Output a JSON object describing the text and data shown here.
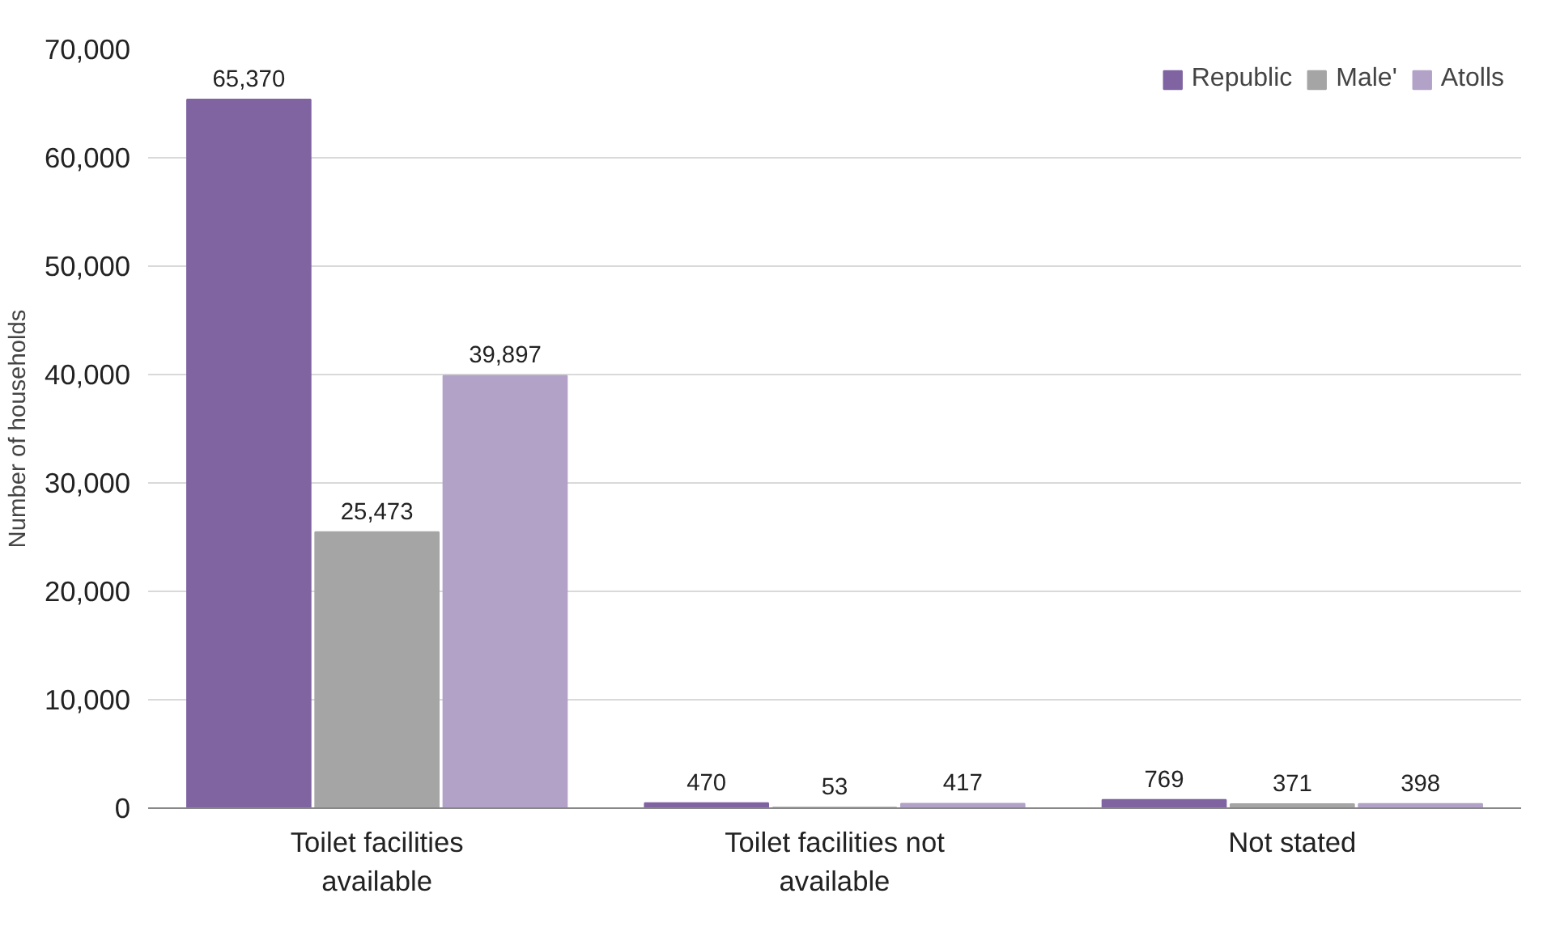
{
  "chart_data": {
    "type": "bar",
    "ylabel": "Number of households",
    "categories": [
      "Toilet facilities available",
      "Toilet facilities not available",
      "Not stated"
    ],
    "series": [
      {
        "name": "Republic",
        "color": "#8064a2",
        "values": [
          65370,
          470,
          769
        ],
        "value_labels": [
          "65,370",
          "470",
          "769"
        ]
      },
      {
        "name": "Male'",
        "color": "#a5a5a5",
        "values": [
          25473,
          53,
          371
        ],
        "value_labels": [
          "25,473",
          "53",
          "371"
        ]
      },
      {
        "name": "Atolls",
        "color": "#b3a2c7",
        "values": [
          39897,
          417,
          398
        ],
        "value_labels": [
          "39,897",
          "417",
          "398"
        ]
      }
    ],
    "ylim": [
      0,
      70000
    ],
    "yticks": [
      0,
      {
        "value": 10000,
        "label": "10,000"
      },
      {
        "value": 20000,
        "label": "20,000"
      },
      {
        "value": 30000,
        "label": "30,000"
      },
      {
        "value": 40000,
        "label": "40,000"
      },
      {
        "value": 50000,
        "label": "50,000"
      },
      {
        "value": 60000,
        "label": "60,000"
      },
      {
        "value": 70000,
        "label": "70,000"
      }
    ],
    "grid": "y",
    "legend": "top right"
  }
}
